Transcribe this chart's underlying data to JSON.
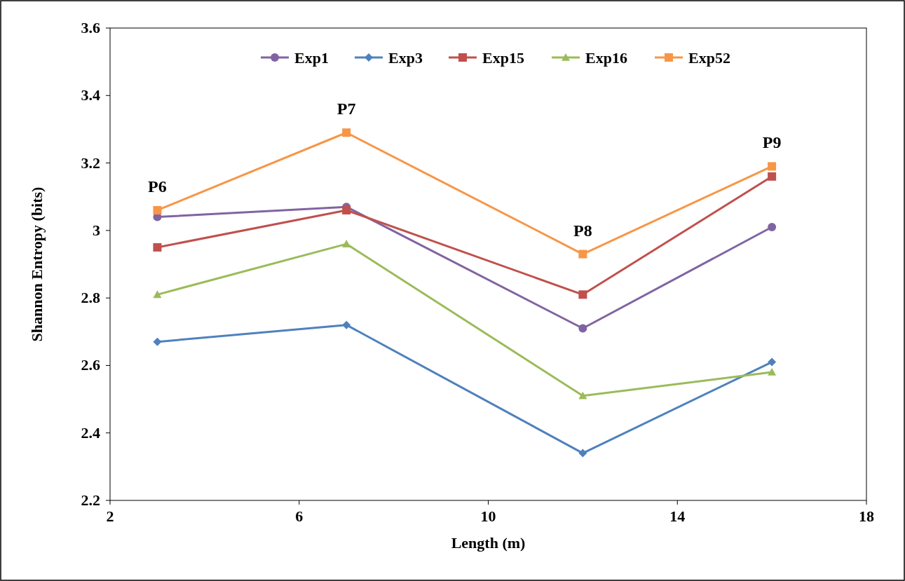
{
  "chart_data": {
    "type": "line",
    "xlabel": "Length (m)",
    "ylabel": "Shannon Entropy (bits)",
    "x": [
      3,
      7,
      12,
      16
    ],
    "series": [
      {
        "name": "Exp1",
        "color": "#8064a2",
        "marker": "circle",
        "values": [
          3.04,
          3.07,
          2.71,
          3.01
        ]
      },
      {
        "name": "Exp3",
        "color": "#4f81bd",
        "marker": "diamond",
        "values": [
          2.67,
          2.72,
          2.34,
          2.61
        ]
      },
      {
        "name": "Exp15",
        "color": "#c0504d",
        "marker": "square",
        "values": [
          2.95,
          3.06,
          2.81,
          3.16
        ]
      },
      {
        "name": "Exp16",
        "color": "#9bbb59",
        "marker": "triangle",
        "values": [
          2.81,
          2.96,
          2.51,
          2.58
        ]
      },
      {
        "name": "Exp52",
        "color": "#f79646",
        "marker": "square",
        "values": [
          3.06,
          3.29,
          2.93,
          3.19
        ]
      }
    ],
    "annotations": [
      {
        "text": "P6",
        "x": 3,
        "y": 3.06
      },
      {
        "text": "P7",
        "x": 7,
        "y": 3.29
      },
      {
        "text": "P8",
        "x": 12,
        "y": 2.93
      },
      {
        "text": "P9",
        "x": 16,
        "y": 3.19
      }
    ],
    "xlim": [
      2,
      18
    ],
    "xticks": [
      2,
      6,
      10,
      14,
      18
    ],
    "ylim": [
      2.2,
      3.6
    ],
    "yticks": [
      {
        "value": 2.2,
        "label": "2.2"
      },
      {
        "value": 2.4,
        "label": "2.4"
      },
      {
        "value": 2.6,
        "label": "2.6"
      },
      {
        "value": 2.8,
        "label": "2.8"
      },
      {
        "value": 3,
        "label": "3"
      },
      {
        "value": 3.2,
        "label": "3.2"
      },
      {
        "value": 3.4,
        "label": "3.4"
      },
      {
        "value": 3.6,
        "label": "3.6"
      }
    ],
    "grid": false,
    "legend": "top"
  }
}
